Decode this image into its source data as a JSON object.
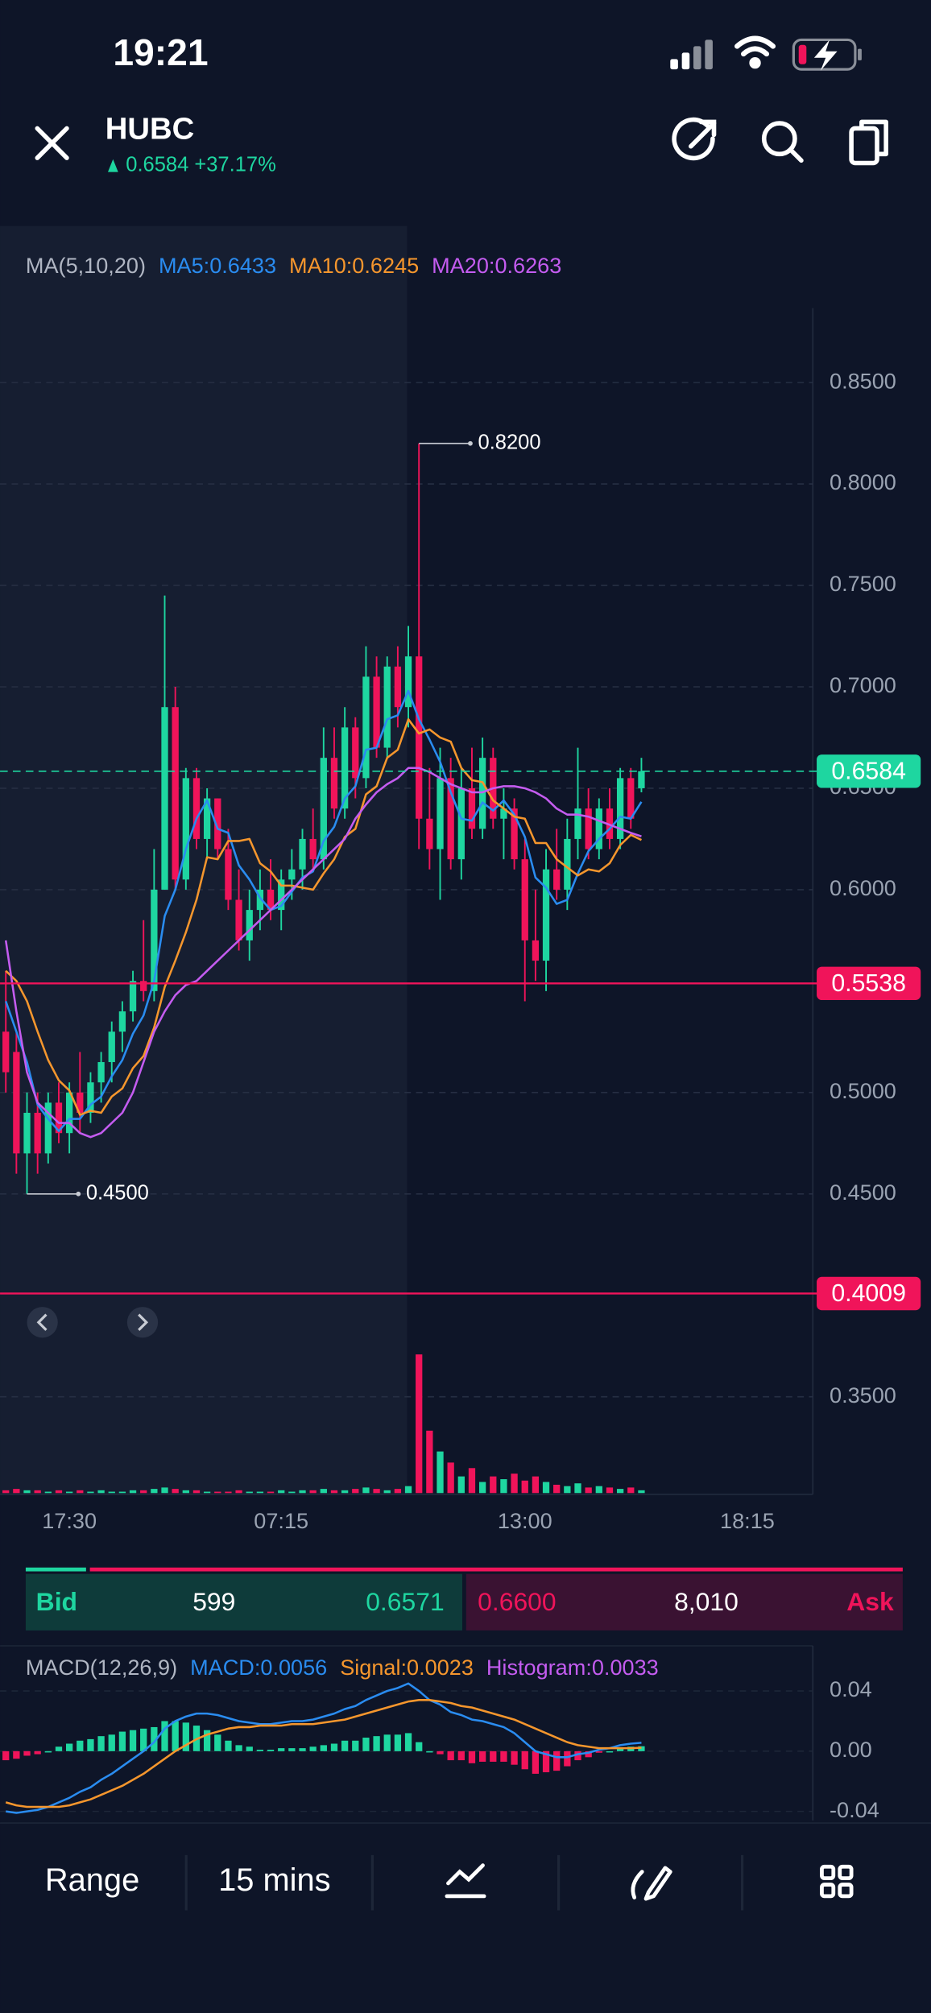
{
  "status_bar": {
    "time": "19:21"
  },
  "header": {
    "symbol": "HUBC",
    "quote": "0.6584 +37.17%"
  },
  "bid_ask": {
    "bid_label": "Bid",
    "bid_size": "599",
    "bid_price": "0.6571",
    "ask_price": "0.6600",
    "ask_size": "8,010",
    "ask_label": "Ask"
  },
  "toolbar": {
    "range": "Range",
    "interval": "15 mins"
  },
  "chart_data": [
    {
      "type": "candlestick",
      "indicator": "MA(5,10,20)",
      "up_color": "#1ed6a0",
      "down_color": "#f0145a",
      "categories": [
        null,
        null,
        null,
        null,
        null,
        null,
        null,
        null,
        "17:30",
        null,
        null,
        null,
        null,
        null,
        null,
        null,
        null,
        null,
        null,
        null,
        null,
        null,
        null,
        null,
        null,
        null,
        null,
        null,
        "07:15",
        null,
        null,
        null,
        null,
        null,
        null,
        null,
        null,
        null,
        null,
        null,
        null,
        null,
        null,
        null,
        null,
        null,
        null,
        null,
        null,
        null,
        null,
        "13:00",
        null,
        null,
        null,
        null,
        null,
        null,
        null,
        null,
        null,
        null,
        null,
        null,
        null,
        null,
        null,
        null,
        null,
        null,
        null,
        null,
        "18:15"
      ],
      "open": [
        null,
        null,
        0.53,
        0.52,
        0.47,
        0.49,
        0.47,
        0.495,
        0.48,
        0.5,
        0.49,
        0.505,
        0.515,
        0.53,
        0.54,
        0.555,
        0.55,
        0.6,
        0.69,
        0.605,
        0.655,
        0.625,
        0.645,
        0.62,
        0.595,
        0.575,
        0.59,
        0.6,
        0.59,
        0.605,
        0.61,
        0.625,
        0.615,
        0.665,
        0.64,
        0.68,
        0.655,
        0.705,
        0.67,
        0.71,
        0.69,
        0.715,
        0.635,
        0.62,
        0.655,
        0.615,
        0.65,
        0.63,
        0.665,
        0.635,
        0.64,
        0.615,
        0.575,
        0.565,
        0.61,
        0.6,
        0.625,
        0.64,
        0.62,
        0.64,
        0.625,
        0.655,
        0.65,
        null,
        null,
        null,
        null,
        null,
        null,
        null,
        null,
        null,
        null
      ],
      "high": [
        null,
        null,
        0.56,
        0.53,
        0.5,
        0.5,
        0.5,
        0.505,
        0.505,
        0.52,
        0.51,
        0.52,
        0.535,
        0.545,
        0.56,
        0.585,
        0.62,
        0.745,
        0.7,
        0.66,
        0.66,
        0.65,
        0.645,
        0.63,
        0.61,
        0.6,
        0.61,
        0.615,
        0.61,
        0.62,
        0.63,
        0.64,
        0.68,
        0.68,
        0.69,
        0.685,
        0.72,
        0.715,
        0.715,
        0.72,
        0.73,
        0.82,
        0.66,
        0.67,
        0.665,
        0.66,
        0.67,
        0.675,
        0.67,
        0.65,
        0.645,
        0.625,
        0.6,
        0.62,
        0.63,
        0.635,
        0.67,
        0.65,
        0.645,
        0.65,
        0.66,
        0.66,
        0.665,
        null,
        null,
        null,
        null,
        null,
        null,
        null,
        null,
        null,
        null
      ],
      "low": [
        null,
        null,
        0.5,
        0.46,
        0.45,
        0.46,
        0.465,
        0.475,
        0.47,
        0.48,
        0.485,
        0.495,
        0.505,
        0.52,
        0.535,
        0.545,
        0.545,
        0.6,
        0.6,
        0.6,
        0.62,
        0.615,
        0.615,
        0.59,
        0.57,
        0.565,
        0.58,
        0.585,
        0.58,
        0.595,
        0.6,
        0.61,
        0.61,
        0.635,
        0.635,
        0.645,
        0.65,
        0.665,
        0.665,
        0.68,
        0.68,
        0.62,
        0.61,
        0.595,
        0.61,
        0.605,
        0.625,
        0.625,
        0.63,
        0.615,
        0.61,
        0.545,
        0.555,
        0.55,
        0.595,
        0.59,
        0.615,
        0.615,
        0.615,
        0.62,
        0.62,
        0.63,
        0.648,
        null,
        null,
        null,
        null,
        null,
        null,
        null,
        null,
        null,
        null
      ],
      "close": [
        null,
        null,
        0.51,
        0.47,
        0.49,
        0.47,
        0.495,
        0.48,
        0.5,
        0.49,
        0.505,
        0.515,
        0.53,
        0.54,
        0.555,
        0.55,
        0.6,
        0.69,
        0.605,
        0.655,
        0.625,
        0.645,
        0.62,
        0.595,
        0.575,
        0.59,
        0.6,
        0.59,
        0.605,
        0.61,
        0.625,
        0.615,
        0.665,
        0.64,
        0.68,
        0.655,
        0.705,
        0.67,
        0.71,
        0.69,
        0.715,
        0.635,
        0.62,
        0.655,
        0.615,
        0.65,
        0.63,
        0.665,
        0.635,
        0.64,
        0.615,
        0.575,
        0.565,
        0.61,
        0.6,
        0.625,
        0.64,
        0.62,
        0.64,
        0.625,
        0.655,
        0.635,
        0.6584,
        null,
        null,
        null,
        null,
        null,
        null,
        null,
        null,
        null,
        null
      ],
      "volume": [
        null,
        null,
        2,
        3,
        2,
        2,
        1,
        2,
        1,
        2,
        1,
        2,
        1,
        1,
        2,
        2,
        3,
        4,
        3,
        2,
        2,
        1,
        1,
        1,
        2,
        1,
        1,
        1,
        2,
        1,
        2,
        2,
        3,
        2,
        2,
        3,
        4,
        3,
        2,
        3,
        5,
        100,
        45,
        30,
        22,
        12,
        18,
        8,
        12,
        10,
        14,
        9,
        12,
        8,
        6,
        5,
        7,
        4,
        5,
        4,
        3,
        4,
        2,
        null,
        null,
        null,
        null,
        null,
        null,
        null,
        null,
        null,
        null
      ],
      "series": [
        {
          "name": "MA5:0.6433",
          "color": "#2a8cf0",
          "values": [
            null,
            null,
            0.545,
            0.53,
            0.515,
            0.494,
            0.487,
            0.481,
            0.487,
            0.487,
            0.494,
            0.498,
            0.508,
            0.516,
            0.529,
            0.538,
            0.555,
            0.587,
            0.6,
            0.62,
            0.635,
            0.644,
            0.63,
            0.628,
            0.612,
            0.605,
            0.596,
            0.59,
            0.592,
            0.599,
            0.606,
            0.609,
            0.624,
            0.631,
            0.645,
            0.651,
            0.669,
            0.67,
            0.684,
            0.686,
            0.698,
            0.684,
            0.674,
            0.663,
            0.648,
            0.635,
            0.634,
            0.643,
            0.639,
            0.644,
            0.637,
            0.626,
            0.606,
            0.601,
            0.593,
            0.595,
            0.608,
            0.619,
            0.625,
            0.63,
            0.636,
            0.635,
            0.6433,
            null,
            null,
            null,
            null,
            null,
            null,
            null,
            null,
            null,
            null
          ]
        },
        {
          "name": "MA10:0.6245",
          "color": "#f5962d",
          "values": [
            null,
            null,
            0.56,
            0.555,
            0.545,
            0.53,
            0.516,
            0.506,
            0.501,
            0.489,
            0.491,
            0.49,
            0.498,
            0.502,
            0.512,
            0.518,
            0.532,
            0.552,
            0.565,
            0.579,
            0.595,
            0.616,
            0.615,
            0.624,
            0.624,
            0.625,
            0.613,
            0.609,
            0.602,
            0.602,
            0.601,
            0.6,
            0.608,
            0.615,
            0.626,
            0.63,
            0.647,
            0.651,
            0.665,
            0.669,
            0.684,
            0.677,
            0.679,
            0.675,
            0.673,
            0.66,
            0.654,
            0.653,
            0.644,
            0.64,
            0.636,
            0.635,
            0.623,
            0.623,
            0.615,
            0.611,
            0.607,
            0.61,
            0.609,
            0.613,
            0.622,
            0.627,
            0.6245,
            null,
            null,
            null,
            null,
            null,
            null,
            null,
            null,
            null,
            null
          ]
        },
        {
          "name": "MA20:0.6263",
          "color": "#c45cf0",
          "values": [
            null,
            null,
            0.575,
            0.54,
            0.51,
            0.495,
            0.49,
            0.485,
            0.485,
            0.48,
            0.478,
            0.48,
            0.485,
            0.49,
            0.5,
            0.515,
            0.53,
            0.54,
            0.548,
            0.553,
            0.555,
            0.56,
            0.565,
            0.57,
            0.575,
            0.58,
            0.585,
            0.59,
            0.595,
            0.6,
            0.605,
            0.61,
            0.615,
            0.62,
            0.625,
            0.635,
            0.642,
            0.648,
            0.652,
            0.655,
            0.66,
            0.66,
            0.658,
            0.655,
            0.652,
            0.65,
            0.648,
            0.648,
            0.65,
            0.651,
            0.651,
            0.65,
            0.648,
            0.645,
            0.64,
            0.637,
            0.637,
            0.636,
            0.634,
            0.632,
            0.63,
            0.628,
            0.6263,
            null,
            null,
            null,
            null,
            null,
            null,
            null,
            null,
            null,
            null
          ]
        }
      ],
      "ylim": [
        0.3,
        0.89
      ],
      "yticks": [
        {
          "value": 0.85,
          "label": "0.8500"
        },
        {
          "value": 0.8,
          "label": "0.8000"
        },
        {
          "value": 0.75,
          "label": "0.7500"
        },
        {
          "value": 0.7,
          "label": "0.7000"
        },
        {
          "value": 0.65,
          "label": "0.6500"
        },
        {
          "value": 0.6,
          "label": "0.6000"
        },
        {
          "value": 0.5,
          "label": "0.5000"
        },
        {
          "value": 0.45,
          "label": "0.4500"
        },
        {
          "value": 0.35,
          "label": "0.3500"
        }
      ],
      "grid": true,
      "price_lines": [
        {
          "value": 0.6584,
          "label": "0.6584",
          "color": "#1ed6a0",
          "dashed": true
        },
        {
          "value": 0.5538,
          "label": "0.5538",
          "color": "#f0145a",
          "dashed": false
        },
        {
          "value": 0.4009,
          "label": "0.4009",
          "color": "#f0145a",
          "dashed": false
        }
      ],
      "high_label": {
        "value": 0.82,
        "label": "0.8200"
      },
      "low_label": {
        "value": 0.45,
        "label": "0.4500"
      }
    },
    {
      "type": "macd",
      "indicator": "MACD(12,26,9)",
      "up_color": "#1ed6a0",
      "down_color": "#f0145a",
      "series": [
        {
          "name": "MACD:0.0056",
          "type": "line",
          "color": "#2a8cf0",
          "values": [
            null,
            null,
            -0.04,
            -0.041,
            -0.04,
            -0.039,
            -0.037,
            -0.034,
            -0.031,
            -0.027,
            -0.024,
            -0.019,
            -0.015,
            -0.01,
            -0.005,
            0.0,
            0.006,
            0.015,
            0.02,
            0.023,
            0.025,
            0.025,
            0.024,
            0.022,
            0.02,
            0.019,
            0.018,
            0.018,
            0.019,
            0.02,
            0.02,
            0.021,
            0.023,
            0.025,
            0.028,
            0.03,
            0.034,
            0.037,
            0.04,
            0.042,
            0.045,
            0.04,
            0.034,
            0.031,
            0.026,
            0.024,
            0.021,
            0.02,
            0.018,
            0.016,
            0.012,
            0.006,
            0.0,
            -0.002,
            -0.004,
            -0.004,
            -0.002,
            -0.001,
            0.001,
            0.002,
            0.004,
            0.005,
            0.0056,
            null,
            null,
            null,
            null,
            null,
            null,
            null,
            null,
            null,
            null
          ]
        },
        {
          "name": "Signal:0.0023",
          "type": "line",
          "color": "#f5962d",
          "values": [
            null,
            null,
            -0.034,
            -0.036,
            -0.037,
            -0.037,
            -0.037,
            -0.037,
            -0.036,
            -0.034,
            -0.032,
            -0.029,
            -0.026,
            -0.023,
            -0.019,
            -0.015,
            -0.01,
            -0.005,
            0.0,
            0.004,
            0.008,
            0.011,
            0.013,
            0.015,
            0.016,
            0.016,
            0.017,
            0.017,
            0.017,
            0.018,
            0.018,
            0.018,
            0.019,
            0.02,
            0.021,
            0.023,
            0.025,
            0.027,
            0.029,
            0.031,
            0.033,
            0.034,
            0.034,
            0.033,
            0.032,
            0.03,
            0.029,
            0.027,
            0.025,
            0.023,
            0.021,
            0.018,
            0.015,
            0.012,
            0.009,
            0.006,
            0.004,
            0.003,
            0.002,
            0.002,
            0.002,
            0.002,
            0.0023,
            null,
            null,
            null,
            null,
            null,
            null,
            null,
            null,
            null,
            null
          ]
        },
        {
          "name": "Histogram:0.0033",
          "type": "bar",
          "color": "#c45cf0",
          "values": [
            null,
            null,
            -0.006,
            -0.005,
            -0.003,
            -0.002,
            0.0,
            0.003,
            0.005,
            0.007,
            0.008,
            0.01,
            0.011,
            0.013,
            0.014,
            0.015,
            0.016,
            0.02,
            0.02,
            0.019,
            0.017,
            0.014,
            0.011,
            0.007,
            0.004,
            0.003,
            0.001,
            0.001,
            0.002,
            0.002,
            0.002,
            0.003,
            0.004,
            0.005,
            0.007,
            0.007,
            0.009,
            0.01,
            0.011,
            0.011,
            0.012,
            0.006,
            0.0,
            -0.002,
            -0.006,
            -0.006,
            -0.008,
            -0.007,
            -0.007,
            -0.007,
            -0.009,
            -0.012,
            -0.015,
            -0.014,
            -0.013,
            -0.01,
            -0.006,
            -0.004,
            -0.001,
            0.0,
            0.002,
            0.003,
            0.0033,
            null,
            null,
            null,
            null,
            null,
            null,
            null,
            null,
            null,
            null
          ]
        }
      ],
      "ylim": [
        -0.046,
        0.07
      ],
      "yticks": [
        0.04,
        {
          "value": 0,
          "label": "0.00"
        },
        -0.04
      ]
    }
  ]
}
